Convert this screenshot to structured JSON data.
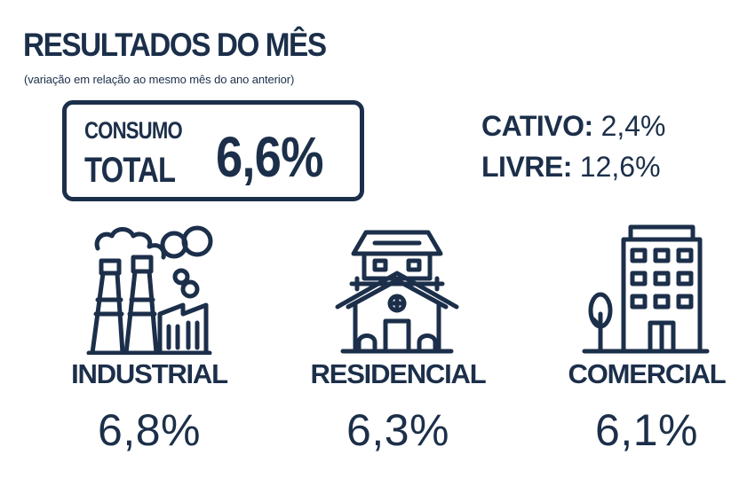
{
  "header": {
    "title": "RESULTADOS DO MÊS",
    "subtitle": "(variação em relação ao mesmo mês do ano anterior)"
  },
  "total": {
    "label_line1": "CONSUMO",
    "label_line2": "TOTAL",
    "value": "6,6%"
  },
  "split": [
    {
      "label": "CATIVO:",
      "value": "2,4%"
    },
    {
      "label": "LIVRE:",
      "value": "12,6%"
    }
  ],
  "sectors": [
    {
      "label": "INDUSTRIAL",
      "value": "6,8%",
      "icon": "factory-icon"
    },
    {
      "label": "RESIDENCIAL",
      "value": "6,3%",
      "icon": "house-icon"
    },
    {
      "label": "COMERCIAL",
      "value": "6,1%",
      "icon": "building-icon"
    }
  ],
  "colors": {
    "primary": "#1c2f4a",
    "background": "#ffffff"
  }
}
